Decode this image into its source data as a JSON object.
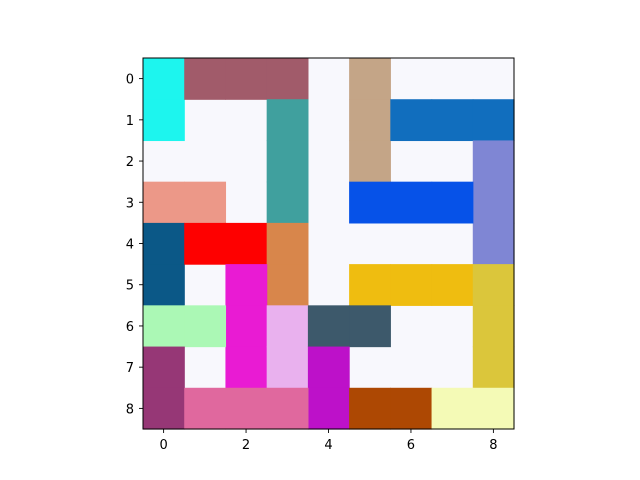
{
  "board": {
    "rows": 9,
    "cols": 9,
    "background": "#f8f8fd",
    "x_ticks": [
      "0",
      "2",
      "4",
      "6",
      "8"
    ],
    "x_tick_values": [
      0,
      2,
      4,
      6,
      8
    ],
    "y_ticks": [
      "0",
      "1",
      "2",
      "3",
      "4",
      "5",
      "6",
      "7",
      "8"
    ],
    "y_tick_values": [
      0,
      1,
      2,
      3,
      4,
      5,
      6,
      7,
      8
    ],
    "pieces": [
      {
        "name": "cyan",
        "color": "#1df5ee",
        "cells": [
          [
            0,
            0
          ],
          [
            1,
            0
          ]
        ]
      },
      {
        "name": "mauve",
        "color": "#a15b6a",
        "cells": [
          [
            0,
            1
          ],
          [
            0,
            2
          ],
          [
            0,
            3
          ]
        ]
      },
      {
        "name": "tan",
        "color": "#c4a587",
        "cells": [
          [
            0,
            5
          ],
          [
            1,
            5
          ],
          [
            2,
            5
          ]
        ]
      },
      {
        "name": "blue",
        "color": "#116ebe",
        "cells": [
          [
            1,
            6
          ],
          [
            1,
            7
          ],
          [
            1,
            8
          ]
        ]
      },
      {
        "name": "teal",
        "color": "#40a09e",
        "cells": [
          [
            1,
            3
          ],
          [
            2,
            3
          ],
          [
            3,
            3
          ]
        ]
      },
      {
        "name": "periwinkle",
        "color": "#7f86d4",
        "cells": [
          [
            2,
            8
          ],
          [
            3,
            8
          ],
          [
            4,
            8
          ]
        ]
      },
      {
        "name": "salmon",
        "color": "#ec9888",
        "cells": [
          [
            3,
            0
          ],
          [
            3,
            1
          ]
        ]
      },
      {
        "name": "bright-blue",
        "color": "#0652e8",
        "cells": [
          [
            3,
            5
          ],
          [
            3,
            6
          ],
          [
            3,
            7
          ]
        ]
      },
      {
        "name": "navy",
        "color": "#0b5887",
        "cells": [
          [
            4,
            0
          ],
          [
            5,
            0
          ]
        ]
      },
      {
        "name": "red",
        "color": "#fe0000",
        "cells": [
          [
            4,
            1
          ],
          [
            4,
            2
          ]
        ]
      },
      {
        "name": "orange",
        "color": "#d8864b",
        "cells": [
          [
            4,
            3
          ],
          [
            5,
            3
          ]
        ]
      },
      {
        "name": "magenta",
        "color": "#e91bd3",
        "cells": [
          [
            5,
            2
          ],
          [
            6,
            2
          ],
          [
            7,
            2
          ]
        ]
      },
      {
        "name": "gold",
        "color": "#efbd10",
        "cells": [
          [
            5,
            5
          ],
          [
            5,
            6
          ],
          [
            5,
            7
          ]
        ]
      },
      {
        "name": "mustard",
        "color": "#dbc63b",
        "cells": [
          [
            5,
            8
          ],
          [
            6,
            8
          ],
          [
            7,
            8
          ]
        ]
      },
      {
        "name": "mint",
        "color": "#abf8b5",
        "cells": [
          [
            6,
            0
          ],
          [
            6,
            1
          ]
        ]
      },
      {
        "name": "lavender",
        "color": "#e9b1ee",
        "cells": [
          [
            6,
            3
          ],
          [
            7,
            3
          ]
        ]
      },
      {
        "name": "slate",
        "color": "#3d596b",
        "cells": [
          [
            6,
            4
          ],
          [
            6,
            5
          ]
        ]
      },
      {
        "name": "plum",
        "color": "#963776",
        "cells": [
          [
            7,
            0
          ],
          [
            8,
            0
          ]
        ]
      },
      {
        "name": "purple",
        "color": "#bd11c9",
        "cells": [
          [
            7,
            4
          ],
          [
            8,
            4
          ]
        ]
      },
      {
        "name": "pink",
        "color": "#e0689e",
        "cells": [
          [
            8,
            1
          ],
          [
            8,
            2
          ],
          [
            8,
            3
          ]
        ]
      },
      {
        "name": "rust",
        "color": "#ad4803",
        "cells": [
          [
            8,
            5
          ],
          [
            8,
            6
          ]
        ]
      },
      {
        "name": "pale-yellow",
        "color": "#f4fab6",
        "cells": [
          [
            8,
            7
          ],
          [
            8,
            8
          ]
        ]
      }
    ]
  }
}
